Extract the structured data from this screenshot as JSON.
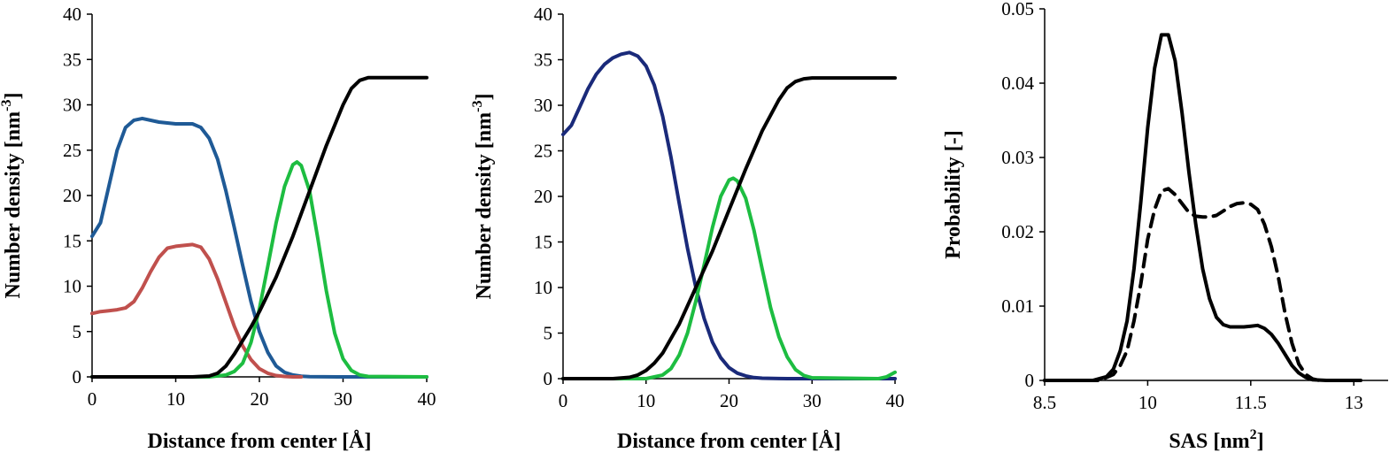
{
  "chart_data": [
    {
      "type": "line",
      "xlabel": "Distance from center [Å]",
      "ylabel": "Number density [nm",
      "ylabel_sup": "-3",
      "ylabel_end": "]",
      "xlim": [
        0,
        40
      ],
      "ylim": [
        0,
        40
      ],
      "xticks": [
        0,
        10,
        20,
        30,
        40
      ],
      "yticks": [
        0,
        5,
        10,
        15,
        20,
        25,
        30,
        35,
        40
      ],
      "series": [
        {
          "color": "#1f5a96",
          "dash": "",
          "x": [
            0,
            1,
            2,
            3,
            4,
            5,
            6,
            8,
            10,
            12,
            13,
            14,
            15,
            16,
            17,
            18,
            19,
            20,
            21,
            22,
            23,
            24,
            25,
            26,
            30,
            40
          ],
          "y": [
            15.5,
            17,
            21,
            25,
            27.5,
            28.3,
            28.5,
            28.1,
            27.9,
            27.9,
            27.5,
            26.3,
            24,
            20.5,
            16.5,
            12.3,
            8.3,
            5,
            2.7,
            1.2,
            0.5,
            0.2,
            0.08,
            0.03,
            0,
            0
          ]
        },
        {
          "color": "#c0504d",
          "dash": "",
          "x": [
            0,
            1,
            2,
            3,
            4,
            5,
            6,
            7,
            8,
            9,
            10,
            11,
            12,
            13,
            14,
            15,
            16,
            17,
            18,
            19,
            20,
            21,
            22,
            23,
            24,
            25
          ],
          "y": [
            7,
            7.2,
            7.3,
            7.4,
            7.6,
            8.3,
            9.8,
            11.6,
            13.2,
            14.2,
            14.4,
            14.5,
            14.6,
            14.3,
            13,
            10.8,
            8.2,
            5.6,
            3.4,
            1.9,
            0.9,
            0.4,
            0.15,
            0.05,
            0,
            0
          ]
        },
        {
          "color": "#1dbd41",
          "dash": "",
          "x": [
            0,
            14,
            16,
            17,
            18,
            19,
            20,
            21,
            22,
            23,
            24,
            24.5,
            25,
            26,
            27,
            28,
            29,
            30,
            31,
            32,
            33,
            40
          ],
          "y": [
            0,
            0,
            0.2,
            0.6,
            1.5,
            3.8,
            7.5,
            12.2,
            17,
            21,
            23.4,
            23.7,
            23.3,
            20.5,
            15.2,
            9.5,
            4.8,
            2,
            0.7,
            0.2,
            0.05,
            0
          ]
        },
        {
          "color": "#000000",
          "dash": "",
          "x": [
            0,
            12,
            14,
            15,
            16,
            17,
            18,
            19,
            20,
            22,
            24,
            26,
            28,
            30,
            31,
            32,
            33,
            34,
            36,
            40
          ],
          "y": [
            0,
            0,
            0.1,
            0.4,
            1.2,
            2.5,
            4,
            5.5,
            7.2,
            11,
            15.5,
            20.5,
            25.5,
            30,
            31.8,
            32.7,
            33,
            33,
            33,
            33
          ]
        }
      ]
    },
    {
      "type": "line",
      "xlabel": "Distance from center [Å]",
      "ylabel": "Number density [nm",
      "ylabel_sup": "-3",
      "ylabel_end": "]",
      "xlim": [
        0,
        40
      ],
      "ylim": [
        0,
        40
      ],
      "xticks": [
        0,
        10,
        20,
        30,
        40
      ],
      "yticks": [
        0,
        5,
        10,
        15,
        20,
        25,
        30,
        35,
        40
      ],
      "series": [
        {
          "color": "#1a2a7a",
          "dash": "",
          "x": [
            0,
            1,
            2,
            3,
            4,
            5,
            6,
            7,
            8,
            9,
            10,
            11,
            12,
            13,
            14,
            15,
            16,
            17,
            18,
            19,
            20,
            21,
            22,
            23,
            24,
            26,
            28,
            30,
            40
          ],
          "y": [
            26.8,
            27.8,
            29.8,
            31.8,
            33.4,
            34.5,
            35.2,
            35.6,
            35.8,
            35.4,
            34.3,
            32.2,
            28.8,
            24.3,
            19.2,
            14.3,
            10,
            6.6,
            4,
            2.3,
            1.2,
            0.6,
            0.3,
            0.12,
            0.05,
            0.01,
            0,
            0,
            0
          ]
        },
        {
          "color": "#1dbd41",
          "dash": "",
          "x": [
            0,
            10,
            12,
            13,
            14,
            15,
            16,
            17,
            18,
            19,
            20,
            20.5,
            21,
            22,
            23,
            24,
            25,
            26,
            27,
            28,
            29,
            30,
            38,
            39,
            40
          ],
          "y": [
            0,
            0,
            0.4,
            1.1,
            2.6,
            5,
            8.5,
            12.5,
            16.6,
            20,
            21.8,
            22,
            21.7,
            19.8,
            16.3,
            12,
            7.8,
            4.6,
            2.4,
            1,
            0.35,
            0.1,
            0,
            0.2,
            0.7
          ]
        },
        {
          "color": "#000000",
          "dash": "",
          "x": [
            0,
            6,
            8,
            9,
            10,
            11,
            12,
            14,
            16,
            18,
            20,
            22,
            24,
            26,
            27,
            28,
            29,
            30,
            32,
            36,
            40
          ],
          "y": [
            0,
            0,
            0.15,
            0.4,
            0.9,
            1.7,
            2.8,
            6,
            10,
            14,
            18.5,
            23,
            27.2,
            30.6,
            31.9,
            32.6,
            32.9,
            33,
            33,
            33,
            33
          ]
        }
      ]
    },
    {
      "type": "line",
      "xlabel": "SAS [nm",
      "xlabel_sup": "2",
      "xlabel_end": "]",
      "ylabel": "Probability [-]",
      "xlim": [
        8.5,
        13.5
      ],
      "ylim": [
        0,
        0.05
      ],
      "xticks": [
        8.5,
        10,
        11.5,
        13
      ],
      "xtick_labels": [
        "8.5",
        "10",
        "11.5",
        "13"
      ],
      "yticks": [
        0,
        0.01,
        0.02,
        0.03,
        0.04,
        0.05
      ],
      "ytick_labels": [
        "0",
        "0.01",
        "0.02",
        "0.03",
        "0.04",
        "0.05"
      ],
      "series": [
        {
          "color": "#000000",
          "dash": "",
          "x": [
            8.5,
            9.2,
            9.4,
            9.5,
            9.6,
            9.7,
            9.8,
            9.9,
            10.0,
            10.1,
            10.2,
            10.3,
            10.4,
            10.5,
            10.6,
            10.7,
            10.8,
            10.9,
            11.0,
            11.1,
            11.2,
            11.3,
            11.4,
            11.5,
            11.6,
            11.7,
            11.8,
            11.9,
            12.0,
            12.1,
            12.2,
            12.3,
            12.4,
            12.6,
            12.8,
            13.1
          ],
          "y": [
            0,
            0,
            0.0005,
            0.0015,
            0.004,
            0.008,
            0.015,
            0.024,
            0.034,
            0.042,
            0.0465,
            0.0465,
            0.043,
            0.036,
            0.028,
            0.021,
            0.015,
            0.011,
            0.0085,
            0.0075,
            0.0072,
            0.0072,
            0.0072,
            0.0073,
            0.0074,
            0.007,
            0.0062,
            0.005,
            0.0035,
            0.002,
            0.001,
            0.0004,
            0.0001,
            0,
            0,
            0
          ]
        },
        {
          "color": "#000000",
          "dash": "14,9",
          "x": [
            8.5,
            9.3,
            9.5,
            9.6,
            9.7,
            9.8,
            9.9,
            10.0,
            10.1,
            10.2,
            10.3,
            10.4,
            10.5,
            10.6,
            10.7,
            10.8,
            10.9,
            11.0,
            11.1,
            11.2,
            11.3,
            11.4,
            11.5,
            11.6,
            11.7,
            11.8,
            11.9,
            12.0,
            12.1,
            12.2,
            12.3,
            12.4,
            12.5
          ],
          "y": [
            0,
            0,
            0.0008,
            0.002,
            0.004,
            0.008,
            0.013,
            0.019,
            0.023,
            0.0255,
            0.0258,
            0.025,
            0.0238,
            0.0226,
            0.0221,
            0.022,
            0.022,
            0.0222,
            0.0228,
            0.0234,
            0.0238,
            0.0239,
            0.0237,
            0.023,
            0.021,
            0.018,
            0.014,
            0.009,
            0.005,
            0.0022,
            0.0008,
            0.0002,
            0
          ]
        }
      ]
    }
  ]
}
